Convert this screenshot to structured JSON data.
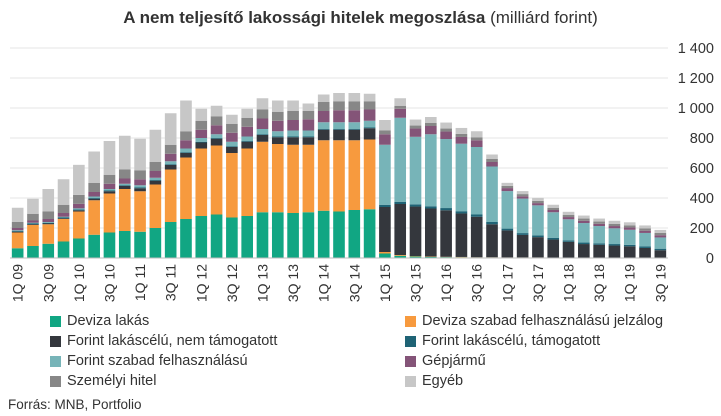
{
  "title_bold": "A nem teljesítő lakossági hitelek megoszlása",
  "title_rest": " (milliárd forint)",
  "source": "Forrás: MNB, Portfolio",
  "chart_data": {
    "type": "bar",
    "stacked": true,
    "title": "A nem teljesítő lakossági hitelek megoszlása (milliárd forint)",
    "ylim": [
      0,
      1400
    ],
    "yticks": [
      "0",
      "200",
      "400",
      "600",
      "800",
      "1 000",
      "1 200",
      "1 400"
    ],
    "ytick_values": [
      0,
      200,
      400,
      600,
      800,
      1000,
      1200,
      1400
    ],
    "xtick_labels": [
      "1Q 09",
      "3Q 09",
      "1Q 10",
      "3Q 10",
      "1Q 11",
      "3Q 11",
      "1Q 12",
      "3Q 12",
      "1Q 13",
      "3Q 13",
      "1Q 14",
      "3Q 14",
      "1Q 15",
      "3Q 15",
      "1Q 16",
      "3Q 16",
      "1Q 17",
      "3Q 17",
      "1Q 18",
      "3Q 18",
      "1Q 19",
      "3Q 19"
    ],
    "categories": [
      "1Q09",
      "2Q09",
      "3Q09",
      "4Q09",
      "1Q10",
      "2Q10",
      "3Q10",
      "4Q10",
      "1Q11",
      "2Q11",
      "3Q11",
      "4Q11",
      "1Q12",
      "2Q12",
      "3Q12",
      "4Q12",
      "1Q13",
      "2Q13",
      "3Q13",
      "4Q13",
      "1Q14",
      "2Q14",
      "3Q14",
      "4Q14",
      "1Q15",
      "2Q15",
      "3Q15",
      "4Q15",
      "1Q16",
      "2Q16",
      "3Q16",
      "4Q16",
      "1Q17",
      "2Q17",
      "3Q17",
      "4Q17",
      "1Q18",
      "2Q18",
      "3Q18",
      "4Q18",
      "1Q19",
      "2Q19",
      "3Q19"
    ],
    "legend_placement": "bottom",
    "series": [
      {
        "name": "Deviza lakás",
        "color": "#11a683",
        "values": [
          65,
          80,
          95,
          110,
          130,
          155,
          170,
          180,
          175,
          200,
          240,
          260,
          280,
          290,
          270,
          280,
          305,
          305,
          300,
          305,
          315,
          310,
          320,
          325,
          30,
          15,
          10,
          8,
          6,
          5,
          4,
          4,
          3,
          3,
          3,
          2,
          2,
          2,
          2,
          2,
          2,
          1,
          1
        ]
      },
      {
        "name": "Deviza szabad felhasználású jelzálog",
        "color": "#f79a3e",
        "values": [
          105,
          140,
          130,
          150,
          180,
          230,
          260,
          280,
          270,
          290,
          350,
          410,
          450,
          460,
          430,
          450,
          470,
          455,
          455,
          450,
          470,
          475,
          465,
          465,
          10,
          5,
          3,
          2,
          2,
          2,
          1,
          1,
          1,
          1,
          1,
          1,
          1,
          1,
          1,
          1,
          1,
          1,
          1
        ]
      },
      {
        "name": "Forint lakáscélú, nem támogatott",
        "color": "#34373d",
        "values": [
          5,
          5,
          5,
          5,
          8,
          10,
          15,
          20,
          20,
          25,
          30,
          30,
          40,
          45,
          40,
          45,
          45,
          45,
          50,
          50,
          70,
          70,
          70,
          75,
          300,
          340,
          330,
          320,
          310,
          290,
          270,
          220,
          180,
          150,
          135,
          120,
          105,
          90,
          85,
          80,
          75,
          65,
          50
        ]
      },
      {
        "name": "Forint lakáscélú, támogatott",
        "color": "#1f6375",
        "values": [
          5,
          5,
          5,
          5,
          5,
          5,
          5,
          5,
          5,
          5,
          5,
          5,
          5,
          5,
          5,
          5,
          5,
          5,
          5,
          5,
          5,
          5,
          5,
          5,
          15,
          15,
          15,
          15,
          15,
          15,
          15,
          15,
          12,
          12,
          12,
          12,
          10,
          10,
          10,
          10,
          10,
          10,
          10
        ]
      },
      {
        "name": "Forint szabad felhasználású",
        "color": "#77b4b8",
        "values": [
          5,
          5,
          5,
          5,
          8,
          10,
          10,
          10,
          15,
          15,
          20,
          25,
          25,
          25,
          30,
          30,
          35,
          35,
          40,
          40,
          45,
          45,
          45,
          45,
          400,
          560,
          450,
          480,
          460,
          450,
          450,
          370,
          250,
          230,
          200,
          170,
          140,
          130,
          115,
          105,
          100,
          90,
          75
        ]
      },
      {
        "name": "Gépjármű",
        "color": "#845478",
        "values": [
          15,
          15,
          20,
          25,
          30,
          30,
          35,
          35,
          40,
          45,
          50,
          55,
          55,
          60,
          60,
          65,
          70,
          70,
          70,
          75,
          75,
          80,
          80,
          75,
          70,
          60,
          55,
          55,
          50,
          45,
          45,
          30,
          20,
          15,
          15,
          15,
          15,
          15,
          15,
          15,
          15,
          15,
          15
        ]
      },
      {
        "name": "Személyi hitel",
        "color": "#878787",
        "values": [
          40,
          45,
          50,
          55,
          60,
          60,
          60,
          60,
          60,
          60,
          60,
          60,
          60,
          60,
          60,
          60,
          60,
          60,
          60,
          55,
          60,
          60,
          60,
          55,
          25,
          20,
          20,
          20,
          20,
          20,
          20,
          20,
          15,
          15,
          15,
          15,
          15,
          15,
          15,
          15,
          15,
          15,
          15
        ]
      },
      {
        "name": "Egyéb",
        "color": "#c7c7c7",
        "values": [
          95,
          100,
          150,
          170,
          200,
          210,
          225,
          225,
          210,
          215,
          210,
          205,
          80,
          70,
          60,
          60,
          75,
          75,
          70,
          50,
          50,
          55,
          55,
          50,
          70,
          50,
          40,
          40,
          40,
          40,
          40,
          30,
          20,
          20,
          20,
          20,
          20,
          20,
          20,
          20,
          20,
          20,
          20
        ]
      }
    ]
  }
}
